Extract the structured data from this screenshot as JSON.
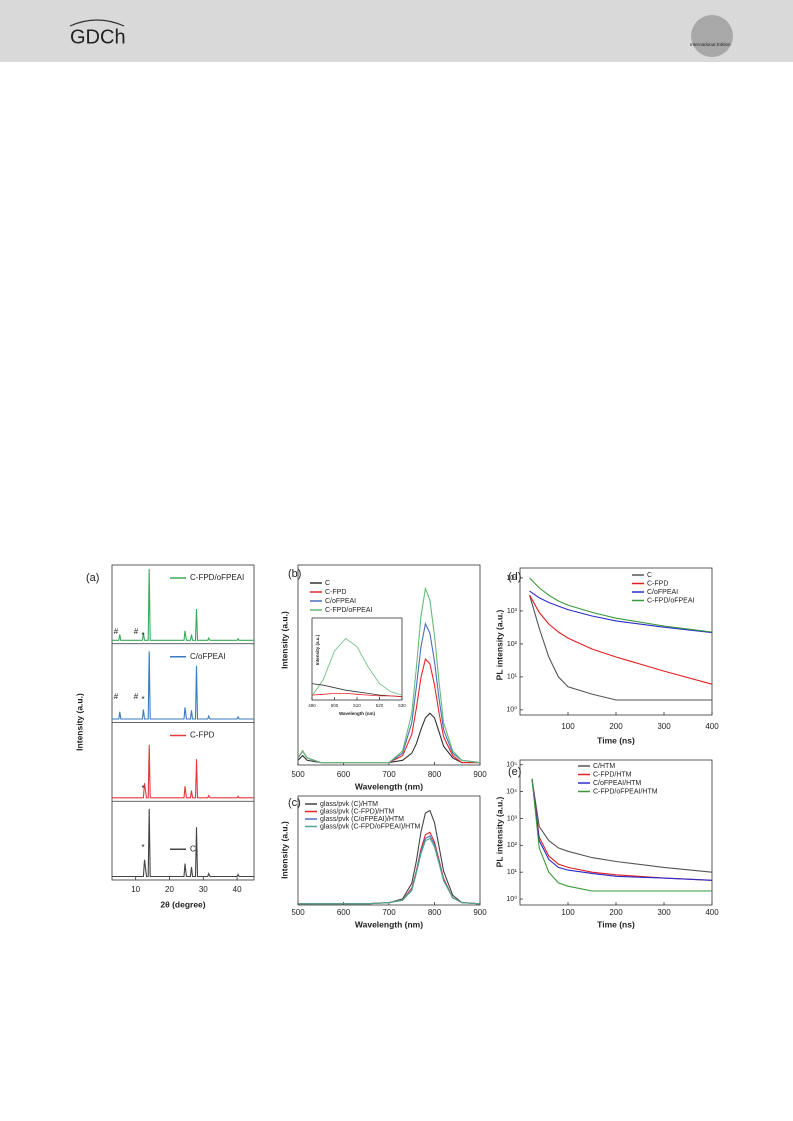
{
  "header": {
    "logo": "GDCh",
    "edition": "International Edition"
  },
  "chart_data": [
    {
      "type": "line",
      "panel": "(a)",
      "stacked_bands": true,
      "ylabel": "Intensity (a.u.)",
      "xlabel": "2θ (degree)",
      "xlim": [
        3,
        45
      ],
      "xticks": [
        10,
        20,
        30,
        40
      ],
      "ylim": [
        0,
        100
      ],
      "x": [
        3,
        5,
        5.3,
        5.6,
        12,
        12.3,
        12.6,
        13.2,
        13.7,
        14,
        14.3,
        20,
        24.3,
        24.6,
        25,
        26.2,
        26.5,
        26.8,
        27.7,
        28,
        28.3,
        31.3,
        31.6,
        32,
        40,
        40.3,
        40.6,
        45
      ],
      "series": [
        {
          "name": "C-FPD/oFPEAI",
          "color": "#3aaa5a",
          "values": [
            2,
            2,
            10,
            2,
            2,
            12,
            2,
            2,
            2,
            100,
            2,
            2,
            2,
            15,
            2,
            2,
            10,
            2,
            2,
            45,
            2,
            2,
            5,
            2,
            2,
            4,
            2,
            2
          ]
        },
        {
          "name": "C/oFPEAI",
          "color": "#3a7abf",
          "values": [
            2,
            2,
            12,
            2,
            2,
            15,
            2,
            2,
            2,
            95,
            2,
            2,
            2,
            18,
            2,
            2,
            14,
            2,
            2,
            75,
            2,
            2,
            6,
            2,
            2,
            5,
            2,
            2
          ]
        },
        {
          "name": "C-FPD",
          "color": "#e5383b",
          "values": [
            2,
            2,
            2,
            2,
            2,
            2,
            22,
            2,
            2,
            75,
            2,
            2,
            2,
            18,
            2,
            2,
            12,
            2,
            2,
            55,
            2,
            2,
            5,
            2,
            2,
            4,
            2,
            2
          ]
        },
        {
          "name": "C",
          "color": "#444444",
          "values": [
            2,
            2,
            2,
            2,
            2,
            2,
            25,
            2,
            2,
            95,
            2,
            2,
            2,
            20,
            2,
            2,
            15,
            2,
            2,
            70,
            2,
            2,
            6,
            2,
            2,
            5,
            2,
            2
          ]
        }
      ],
      "annotations": [
        "#",
        "#",
        "*",
        "#",
        "#",
        "*",
        "*",
        "*"
      ]
    },
    {
      "type": "line",
      "panel": "(b)",
      "ylabel": "Intensity (a.u.)",
      "xlabel": "Wavelength (nm)",
      "xlim": [
        500,
        900
      ],
      "xticks": [
        500,
        600,
        700,
        800,
        900
      ],
      "ylim": [
        0,
        0.85
      ],
      "x": [
        500,
        510,
        520,
        550,
        600,
        650,
        700,
        730,
        750,
        760,
        770,
        780,
        790,
        800,
        810,
        820,
        840,
        860,
        900
      ],
      "series": [
        {
          "name": "C",
          "color": "#333333",
          "values": [
            0.02,
            0.04,
            0.02,
            0.01,
            0.01,
            0.01,
            0.01,
            0.02,
            0.05,
            0.09,
            0.15,
            0.2,
            0.22,
            0.2,
            0.14,
            0.08,
            0.03,
            0.01,
            0.01
          ]
        },
        {
          "name": "C-FPD",
          "color": "#e8262a",
          "values": [
            0.03,
            0.06,
            0.03,
            0.01,
            0.01,
            0.01,
            0.01,
            0.04,
            0.13,
            0.24,
            0.37,
            0.45,
            0.43,
            0.34,
            0.22,
            0.12,
            0.04,
            0.01,
            0.01
          ]
        },
        {
          "name": "C/oFPEAI",
          "color": "#4a6fc0",
          "values": [
            0.03,
            0.06,
            0.03,
            0.01,
            0.01,
            0.01,
            0.01,
            0.05,
            0.18,
            0.33,
            0.5,
            0.6,
            0.56,
            0.44,
            0.28,
            0.15,
            0.05,
            0.02,
            0.01
          ]
        },
        {
          "name": "C-FPD/oFPEAI",
          "color": "#66bb77",
          "values": [
            0.03,
            0.06,
            0.03,
            0.01,
            0.01,
            0.01,
            0.01,
            0.06,
            0.22,
            0.41,
            0.63,
            0.75,
            0.7,
            0.55,
            0.35,
            0.18,
            0.06,
            0.02,
            0.01
          ]
        }
      ]
    },
    {
      "type": "line",
      "ylabel": "Intensity (a.u.)",
      "xlabel": "Wavelength (nm)",
      "xlim": [
        490,
        530
      ],
      "xticks": [
        490,
        500,
        510,
        520,
        530
      ],
      "ylim": [
        0,
        1
      ],
      "x": [
        490,
        495,
        500,
        505,
        510,
        515,
        520,
        525,
        530
      ],
      "series": [
        {
          "color": "#66bb77",
          "values": [
            0.05,
            0.25,
            0.6,
            0.75,
            0.65,
            0.4,
            0.2,
            0.1,
            0.06
          ]
        },
        {
          "color": "#333333",
          "values": [
            0.2,
            0.18,
            0.15,
            0.12,
            0.1,
            0.08,
            0.06,
            0.05,
            0.04
          ]
        },
        {
          "color": "#e8262a",
          "values": [
            0.06,
            0.07,
            0.08,
            0.08,
            0.07,
            0.06,
            0.05,
            0.05,
            0.04
          ]
        }
      ]
    },
    {
      "type": "line",
      "panel": "(c)",
      "ylabel": "Intensity (a.u.)",
      "xlabel": "Wavelength (nm)",
      "xlim": [
        500,
        900
      ],
      "xticks": [
        500,
        600,
        700,
        800,
        900
      ],
      "ylim": [
        0,
        0.9
      ],
      "x": [
        500,
        550,
        600,
        650,
        700,
        730,
        750,
        760,
        770,
        780,
        790,
        800,
        810,
        820,
        840,
        860,
        900
      ],
      "series": [
        {
          "name": "glass/pvk (C)/HTM",
          "color": "#444444",
          "values": [
            0.01,
            0.01,
            0.01,
            0.01,
            0.02,
            0.05,
            0.18,
            0.36,
            0.6,
            0.76,
            0.78,
            0.68,
            0.48,
            0.28,
            0.08,
            0.02,
            0.01
          ]
        },
        {
          "name": "glass/pvk (C-FPD)/HTM",
          "color": "#e8262a",
          "values": [
            0.01,
            0.01,
            0.01,
            0.01,
            0.02,
            0.04,
            0.14,
            0.28,
            0.46,
            0.58,
            0.6,
            0.52,
            0.37,
            0.22,
            0.06,
            0.02,
            0.01
          ]
        },
        {
          "name": "glass/pvk (C/oFPEAI)/HTM",
          "color": "#4a6fc0",
          "values": [
            0.01,
            0.01,
            0.01,
            0.01,
            0.02,
            0.04,
            0.13,
            0.27,
            0.44,
            0.55,
            0.57,
            0.5,
            0.35,
            0.21,
            0.06,
            0.02,
            0.01
          ]
        },
        {
          "name": "glass/pvk (C-FPD/oFPEAI)/HTM",
          "color": "#55aa88",
          "values": [
            0.01,
            0.01,
            0.01,
            0.01,
            0.02,
            0.04,
            0.12,
            0.26,
            0.42,
            0.53,
            0.55,
            0.48,
            0.34,
            0.2,
            0.06,
            0.02,
            0.01
          ]
        }
      ]
    },
    {
      "type": "line",
      "panel": "(d)",
      "log_y": true,
      "ylabel": "PL intensity (a.u.)",
      "xlabel": "Time (ns)",
      "xlim": [
        0,
        400
      ],
      "xticks": [
        100,
        200,
        300,
        400
      ],
      "ylim": [
        0.7,
        20000
      ],
      "yticks": [
        {
          "value": 1,
          "label": "10⁰"
        },
        {
          "value": 10,
          "label": "10¹"
        },
        {
          "value": 100,
          "label": "10²"
        },
        {
          "value": 1000,
          "label": "10³"
        },
        {
          "value": 10000,
          "label": "10⁴"
        }
      ],
      "x": [
        20,
        40,
        60,
        80,
        100,
        150,
        200,
        300,
        400
      ],
      "series": [
        {
          "name": "C",
          "color": "#555555",
          "values": [
            3000,
            300,
            40,
            10,
            5,
            3,
            2,
            2,
            2
          ]
        },
        {
          "name": "C-FPD",
          "color": "#e02020",
          "values": [
            3000,
            900,
            400,
            230,
            150,
            70,
            40,
            15,
            6
          ]
        },
        {
          "name": "C/oFPEAI",
          "color": "#2a2acc",
          "values": [
            4000,
            2500,
            1800,
            1400,
            1100,
            700,
            500,
            320,
            220
          ]
        },
        {
          "name": "C-FPD/oFPEAI",
          "color": "#3a9a3a",
          "values": [
            10000,
            5000,
            3000,
            2000,
            1500,
            900,
            600,
            350,
            230
          ]
        }
      ]
    },
    {
      "type": "line",
      "panel": "(e)",
      "log_y": true,
      "ylabel": "PL intensity (a.u.)",
      "xlabel": "Time (ns)",
      "xlim": [
        0,
        400
      ],
      "xticks": [
        100,
        200,
        300,
        400
      ],
      "ylim": [
        0.6,
        150000
      ],
      "yticks": [
        {
          "value": 1,
          "label": "10⁰"
        },
        {
          "value": 10,
          "label": "10¹"
        },
        {
          "value": 100,
          "label": "10²"
        },
        {
          "value": 1000,
          "label": "10³"
        },
        {
          "value": 10000,
          "label": "10⁴"
        },
        {
          "value": 100000,
          "label": "10⁵"
        }
      ],
      "x": [
        25,
        40,
        60,
        80,
        100,
        150,
        200,
        300,
        400
      ],
      "series": [
        {
          "name": "C/HTM",
          "color": "#555555",
          "values": [
            30000,
            500,
            150,
            80,
            60,
            35,
            25,
            15,
            10
          ]
        },
        {
          "name": "C-FPD/HTM",
          "color": "#e02020",
          "values": [
            30000,
            200,
            40,
            20,
            15,
            10,
            8,
            6,
            5
          ]
        },
        {
          "name": "C/oFPEAI/HTM",
          "color": "#2a2acc",
          "values": [
            30000,
            150,
            30,
            15,
            12,
            9,
            7,
            6,
            5
          ]
        },
        {
          "name": "C-FPD/oFPEAI/HTM",
          "color": "#3a9a3a",
          "values": [
            30000,
            80,
            10,
            4,
            3,
            2,
            2,
            2,
            2
          ]
        }
      ]
    }
  ]
}
